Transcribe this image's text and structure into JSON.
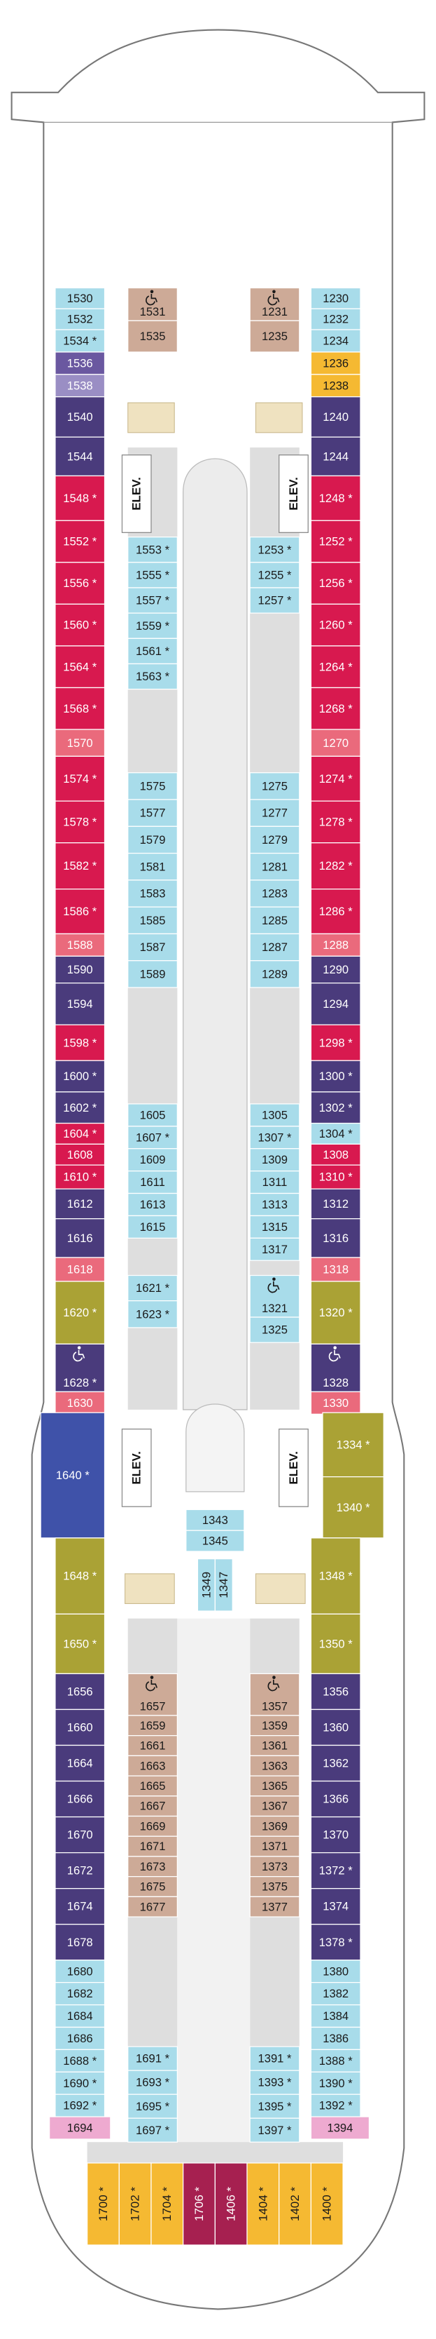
{
  "cabins": {
    "port_outer_fwd": {
      "labels": [
        "1530",
        "1532",
        "1534 *",
        "1536",
        "1538",
        "1540",
        "1544",
        "1548 *",
        "1552 *",
        "1556 *",
        "1560 *",
        "1564 *",
        "1568 *",
        "1570",
        "1574 *",
        "1578 *",
        "1582 *",
        "1586 *",
        "1588",
        "1590",
        "1594",
        "1598 *",
        "1600 *",
        "1602 *",
        "1604 *",
        "1608",
        "1610 *",
        "1612",
        "1616",
        "1618",
        "1620 *",
        "1628 *",
        "1630"
      ],
      "colors": [
        "#a8dcea",
        "#a8dcea",
        "#a8dcea",
        "#6a58a0",
        "#9a8ec4",
        "#4a3b7c",
        "#4a3b7c",
        "#d8194f",
        "#d8194f",
        "#d8194f",
        "#d8194f",
        "#d8194f",
        "#d8194f",
        "#ea6a7c",
        "#d8194f",
        "#d8194f",
        "#d8194f",
        "#d8194f",
        "#ea6a7c",
        "#4a3b7c",
        "#4a3b7c",
        "#d8194f",
        "#4a3b7c",
        "#4a3b7c",
        "#d8194f",
        "#d8194f",
        "#d8194f",
        "#4a3b7c",
        "#4a3b7c",
        "#ea6a7c",
        "#aaa235",
        "#4a3b7c",
        "#ea6a7c"
      ]
    },
    "stbd_outer_fwd": {
      "labels": [
        "1230",
        "1232",
        "1234",
        "1236",
        "1238",
        "1240",
        "1244",
        "1248 *",
        "1252 *",
        "1256 *",
        "1260 *",
        "1264 *",
        "1268 *",
        "1270",
        "1274 *",
        "1278 *",
        "1282 *",
        "1286 *",
        "1288",
        "1290",
        "1294",
        "1298 *",
        "1300 *",
        "1302 *",
        "1304 *",
        "1308",
        "1310 *",
        "1312",
        "1316",
        "1318",
        "1320 *",
        "1328",
        "1330"
      ],
      "colors": [
        "#a8dcea",
        "#a8dcea",
        "#a8dcea",
        "#f5b932",
        "#f5b932",
        "#4a3b7c",
        "#4a3b7c",
        "#d8194f",
        "#d8194f",
        "#d8194f",
        "#d8194f",
        "#d8194f",
        "#d8194f",
        "#ea6a7c",
        "#d8194f",
        "#d8194f",
        "#d8194f",
        "#d8194f",
        "#ea6a7c",
        "#4a3b7c",
        "#4a3b7c",
        "#d8194f",
        "#4a3b7c",
        "#4a3b7c",
        "#a8dcea",
        "#d8194f",
        "#d8194f",
        "#4a3b7c",
        "#4a3b7c",
        "#ea6a7c",
        "#aaa235",
        "#4a3b7c",
        "#ea6a7c"
      ]
    },
    "port_outer_aft": {
      "labels": [
        "1640 *",
        "1648 *",
        "1650 *",
        "1656",
        "1660",
        "1664",
        "1666",
        "1670",
        "1672",
        "1674",
        "1678",
        "1680",
        "1682",
        "1684",
        "1686",
        "1688 *",
        "1690 *",
        "1692 *",
        "1694"
      ],
      "colors": [
        "#3f52a9",
        "#aaa235",
        "#aaa235",
        "#4a3b7c",
        "#4a3b7c",
        "#4a3b7c",
        "#4a3b7c",
        "#4a3b7c",
        "#4a3b7c",
        "#4a3b7c",
        "#4a3b7c",
        "#a8dcea",
        "#a8dcea",
        "#a8dcea",
        "#a8dcea",
        "#a8dcea",
        "#a8dcea",
        "#a8dcea",
        "#eeaad0"
      ]
    },
    "stbd_outer_aft": {
      "labels": [
        "1334 *",
        "1340 *",
        "1348 *",
        "1350 *",
        "1356",
        "1360",
        "1362",
        "1366",
        "1370",
        "1372 *",
        "1374",
        "1378 *",
        "1380",
        "1382",
        "1384",
        "1386",
        "1388 *",
        "1390 *",
        "1392 *",
        "1394"
      ],
      "colors": [
        "#aaa235",
        "#aaa235",
        "#aaa235",
        "#aaa235",
        "#4a3b7c",
        "#4a3b7c",
        "#4a3b7c",
        "#4a3b7c",
        "#4a3b7c",
        "#4a3b7c",
        "#4a3b7c",
        "#4a3b7c",
        "#a8dcea",
        "#a8dcea",
        "#a8dcea",
        "#a8dcea",
        "#a8dcea",
        "#a8dcea",
        "#a8dcea",
        "#eeaad0"
      ]
    },
    "port_fwd_a": {
      "labels": [
        "1531",
        "1535"
      ],
      "colors": [
        "#cdaa97",
        "#cdaa97"
      ]
    },
    "stbd_fwd_a": {
      "labels": [
        "1231",
        "1235"
      ],
      "colors": [
        "#cdaa97",
        "#cdaa97"
      ]
    },
    "port_fwd_b": {
      "labels": [
        "1553 *",
        "1555 *",
        "1557 *",
        "1559 *",
        "1561 *",
        "1563 *"
      ],
      "colors": [
        "#a8dcea",
        "#a8dcea",
        "#a8dcea",
        "#a8dcea",
        "#a8dcea",
        "#a8dcea"
      ]
    },
    "stbd_fwd_b": {
      "labels": [
        "1253 *",
        "1255 *",
        "1257 *"
      ],
      "colors": [
        "#a8dcea",
        "#a8dcea",
        "#a8dcea"
      ]
    },
    "port_mid": {
      "labels": [
        "1575",
        "1577",
        "1579",
        "1581",
        "1583",
        "1585",
        "1587",
        "1589"
      ],
      "colors": [
        "#a8dcea",
        "#a8dcea",
        "#a8dcea",
        "#a8dcea",
        "#a8dcea",
        "#a8dcea",
        "#a8dcea",
        "#a8dcea"
      ]
    },
    "stbd_mid": {
      "labels": [
        "1275",
        "1277",
        "1279",
        "1281",
        "1283",
        "1285",
        "1287",
        "1289"
      ],
      "colors": [
        "#a8dcea",
        "#a8dcea",
        "#a8dcea",
        "#a8dcea",
        "#a8dcea",
        "#a8dcea",
        "#a8dcea",
        "#a8dcea"
      ]
    },
    "port_mid2": {
      "labels": [
        "1605",
        "1607 *",
        "1609",
        "1611",
        "1613",
        "1615"
      ],
      "colors": [
        "#a8dcea",
        "#a8dcea",
        "#a8dcea",
        "#a8dcea",
        "#a8dcea",
        "#a8dcea"
      ]
    },
    "stbd_mid2": {
      "labels": [
        "1305",
        "1307 *",
        "1309",
        "1311",
        "1313",
        "1315",
        "1317"
      ],
      "colors": [
        "#a8dcea",
        "#a8dcea",
        "#a8dcea",
        "#a8dcea",
        "#a8dcea",
        "#a8dcea",
        "#a8dcea"
      ]
    },
    "port_mid3": {
      "labels": [
        "1621 *",
        "1623 *"
      ],
      "colors": [
        "#a8dcea",
        "#a8dcea"
      ]
    },
    "stbd_mid3": {
      "labels": [
        "1321",
        "1325"
      ],
      "colors": [
        "#a8dcea",
        "#a8dcea"
      ]
    },
    "center_a": {
      "labels": [
        "1343",
        "1345"
      ],
      "colors": [
        "#a8dcea",
        "#a8dcea"
      ]
    },
    "center_b": {
      "labels": [
        "1349",
        "1347"
      ],
      "colors": [
        "#a8dcea",
        "#a8dcea"
      ]
    },
    "port_aft_tan": {
      "labels": [
        "1657",
        "1659",
        "1661",
        "1663",
        "1665",
        "1667",
        "1669",
        "1671",
        "1673",
        "1675",
        "1677"
      ],
      "colors": [
        "#cdaa97",
        "#cdaa97",
        "#cdaa97",
        "#cdaa97",
        "#cdaa97",
        "#cdaa97",
        "#cdaa97",
        "#cdaa97",
        "#cdaa97",
        "#cdaa97",
        "#cdaa97"
      ]
    },
    "stbd_aft_tan": {
      "labels": [
        "1357",
        "1359",
        "1361",
        "1363",
        "1365",
        "1367",
        "1369",
        "1371",
        "1373",
        "1375",
        "1377"
      ],
      "colors": [
        "#cdaa97",
        "#cdaa97",
        "#cdaa97",
        "#cdaa97",
        "#cdaa97",
        "#cdaa97",
        "#cdaa97",
        "#cdaa97",
        "#cdaa97",
        "#cdaa97",
        "#cdaa97"
      ]
    },
    "port_aft_b": {
      "labels": [
        "1691 *",
        "1693 *",
        "1695 *",
        "1697 *"
      ],
      "colors": [
        "#a8dcea",
        "#a8dcea",
        "#a8dcea",
        "#a8dcea"
      ]
    },
    "stbd_aft_b": {
      "labels": [
        "1391 *",
        "1393 *",
        "1395 *",
        "1397 *"
      ],
      "colors": [
        "#a8dcea",
        "#a8dcea",
        "#a8dcea",
        "#a8dcea"
      ]
    },
    "stern": {
      "labels": [
        "1700 *",
        "1702 *",
        "1704 *",
        "1706 *",
        "1406 *",
        "1404 *",
        "1402 *",
        "1400 *"
      ],
      "colors": [
        "#f5b932",
        "#f5b932",
        "#f5b932",
        "#a62050",
        "#a62050",
        "#f5b932",
        "#f5b932",
        "#f5b932"
      ]
    }
  },
  "elevators": [
    "ELEV.",
    "ELEV.",
    "ELEV.",
    "ELEV."
  ]
}
